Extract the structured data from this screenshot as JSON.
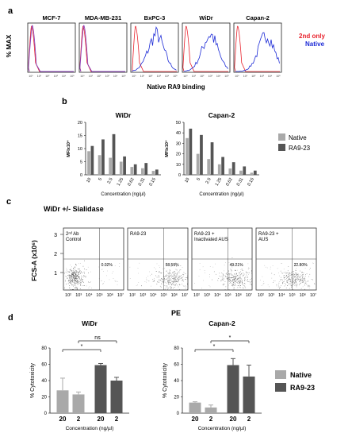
{
  "panels": {
    "a": {
      "letter": "a",
      "ylabel": "% MAX",
      "xlabel": "Native RA9 binding",
      "tick_labels": [
        "10⁰",
        "10¹",
        "10²",
        "10³",
        "10⁴",
        "10⁵"
      ],
      "legend": [
        {
          "label": "2nd only",
          "color": "#e8202a"
        },
        {
          "label": "Native",
          "color": "#1c2ad6"
        }
      ],
      "histograms": [
        {
          "name": "MCF-7",
          "native_peak": 0.08,
          "native_spread": "narrow",
          "control_peak": 0.08
        },
        {
          "name": "MDA-MB-231",
          "native_peak": 0.1,
          "native_spread": "narrow",
          "control_peak": 0.08
        },
        {
          "name": "BxPC-3",
          "native_peak": 0.55,
          "native_spread": "broad",
          "control_peak": 0.1
        },
        {
          "name": "WiDr",
          "native_peak": 0.6,
          "native_spread": "broad",
          "control_peak": 0.08
        },
        {
          "name": "Capan-2",
          "native_peak": 0.7,
          "native_spread": "broad",
          "control_peak": 0.08
        }
      ]
    },
    "b": {
      "letter": "b",
      "legend": [
        {
          "label": "Native",
          "color": "#a9a9a9"
        },
        {
          "label": "RA9-23",
          "color": "#555555"
        }
      ],
      "charts": [
        {
          "type": "bar",
          "title": "WiDr",
          "ylabel": "MFIx10⁴",
          "xlabel": "Concentration (ng/µl)",
          "categories": [
            "10",
            "5",
            "2.5",
            "1.25",
            "0.62",
            "0.31",
            "0.15"
          ],
          "ylim": [
            0,
            20
          ],
          "yticks": [
            "0",
            "5",
            "10",
            "15",
            "20"
          ],
          "series": [
            {
              "name": "Native",
              "color": "#a9a9a9",
              "values": [
                9,
                7.5,
                6.5,
                5,
                3,
                2.5,
                1.5
              ]
            },
            {
              "name": "RA9-23",
              "color": "#555555",
              "values": [
                11,
                13.5,
                15.5,
                7,
                4,
                4.5,
                2
              ]
            }
          ]
        },
        {
          "type": "bar",
          "title": "Capan-2",
          "ylabel": "MFIx10⁴",
          "xlabel": "Concentration (ng/µl)",
          "categories": [
            "10",
            "5",
            "2.5",
            "1.25",
            "0.62",
            "0.31",
            "0.15"
          ],
          "ylim": [
            0,
            50
          ],
          "yticks": [
            "0",
            "10",
            "20",
            "30",
            "40",
            "50"
          ],
          "series": [
            {
              "name": "Native",
              "color": "#a9a9a9",
              "values": [
                35,
                20,
                15,
                10,
                6,
                4,
                2
              ]
            },
            {
              "name": "RA9-23",
              "color": "#555555",
              "values": [
                44,
                38,
                31,
                17,
                12,
                8,
                4
              ]
            }
          ]
        }
      ]
    },
    "c": {
      "letter": "c",
      "title": "WiDr +/- Sialidase",
      "ylabel": "FCS-A (x10⁶)",
      "xlabel": "PE",
      "yticks": [
        "1",
        "2",
        "3"
      ],
      "xticks": [
        "10²",
        "10³",
        "10⁴",
        "10⁵",
        "10⁶",
        "10⁷"
      ],
      "plots": [
        {
          "label_line1": "2ⁿᵈ Ab",
          "label_line2": "Control",
          "percent": "0.02%",
          "density": "dense-left"
        },
        {
          "label_line1": "RA9-23",
          "label_line2": "",
          "percent": "58.59%",
          "density": "cluster-right"
        },
        {
          "label_line1": "RA9-23 +",
          "label_line2": "Inactivated AUS",
          "percent": "49.21%",
          "density": "cluster-right"
        },
        {
          "label_line1": "RA9-23 +",
          "label_line2": "AUS",
          "percent": "22.80%",
          "density": "cluster-mid"
        }
      ]
    },
    "d": {
      "letter": "d",
      "legend": [
        {
          "label": "Native",
          "color": "#a9a9a9"
        },
        {
          "label": "RA9-23",
          "color": "#555555"
        }
      ],
      "charts": [
        {
          "type": "bar",
          "title": "WiDr",
          "ylabel": "% Cytotoxicity",
          "xlabel": "Concentration (ng/µl)",
          "categories": [
            "20",
            "2",
            "20",
            "2"
          ],
          "ylim": [
            0,
            80
          ],
          "yticks": [
            "0",
            "20",
            "40",
            "60",
            "80"
          ],
          "values": [
            28,
            23,
            59,
            40
          ],
          "errors": [
            15,
            3,
            2,
            4
          ],
          "series": [
            "Native",
            "Native",
            "RA9-23",
            "RA9-23"
          ],
          "annotations": [
            {
              "label": "*",
              "from": 0,
              "to": 2
            },
            {
              "label": "ns",
              "from": 1,
              "to": 3
            }
          ]
        },
        {
          "type": "bar",
          "title": "Capan-2",
          "ylabel": "% Cytotoxicity",
          "xlabel": "Concentration (ng/µl)",
          "categories": [
            "20",
            "2",
            "20",
            "2"
          ],
          "ylim": [
            0,
            80
          ],
          "yticks": [
            "0",
            "20",
            "40",
            "60",
            "80"
          ],
          "values": [
            13,
            7,
            59,
            45
          ],
          "errors": [
            1,
            3,
            8,
            14
          ],
          "series": [
            "Native",
            "Native",
            "RA9-23",
            "RA9-23"
          ],
          "annotations": [
            {
              "label": "*",
              "from": 0,
              "to": 2
            },
            {
              "label": "*",
              "from": 1,
              "to": 3
            }
          ]
        }
      ]
    }
  },
  "chart_data": [
    {
      "type": "bar",
      "title": "WiDr",
      "categories": [
        "10",
        "5",
        "2.5",
        "1.25",
        "0.62",
        "0.31",
        "0.15"
      ],
      "series": [
        {
          "name": "Native",
          "values": [
            9,
            7.5,
            6.5,
            5,
            3,
            2.5,
            1.5
          ]
        },
        {
          "name": "RA9-23",
          "values": [
            11,
            13.5,
            15.5,
            7,
            4,
            4.5,
            2
          ]
        }
      ],
      "xlabel": "Concentration (ng/µl)",
      "ylabel": "MFIx10⁴",
      "ylim": [
        0,
        20
      ]
    },
    {
      "type": "bar",
      "title": "Capan-2",
      "categories": [
        "10",
        "5",
        "2.5",
        "1.25",
        "0.62",
        "0.31",
        "0.15"
      ],
      "series": [
        {
          "name": "Native",
          "values": [
            35,
            20,
            15,
            10,
            6,
            4,
            2
          ]
        },
        {
          "name": "RA9-23",
          "values": [
            44,
            38,
            31,
            17,
            12,
            8,
            4
          ]
        }
      ],
      "xlabel": "Concentration (ng/µl)",
      "ylabel": "MFIx10⁴",
      "ylim": [
        0,
        50
      ]
    },
    {
      "type": "bar",
      "title": "WiDr",
      "categories": [
        "20",
        "2",
        "20",
        "2"
      ],
      "values": [
        28,
        23,
        59,
        40
      ],
      "errors": [
        15,
        3,
        2,
        4
      ],
      "xlabel": "Concentration (ng/µl)",
      "ylabel": "% Cytotoxicity",
      "ylim": [
        0,
        80
      ]
    },
    {
      "type": "bar",
      "title": "Capan-2",
      "categories": [
        "20",
        "2",
        "20",
        "2"
      ],
      "values": [
        13,
        7,
        59,
        45
      ],
      "errors": [
        1,
        3,
        8,
        14
      ],
      "xlabel": "Concentration (ng/µl)",
      "ylabel": "% Cytotoxicity",
      "ylim": [
        0,
        80
      ]
    }
  ]
}
